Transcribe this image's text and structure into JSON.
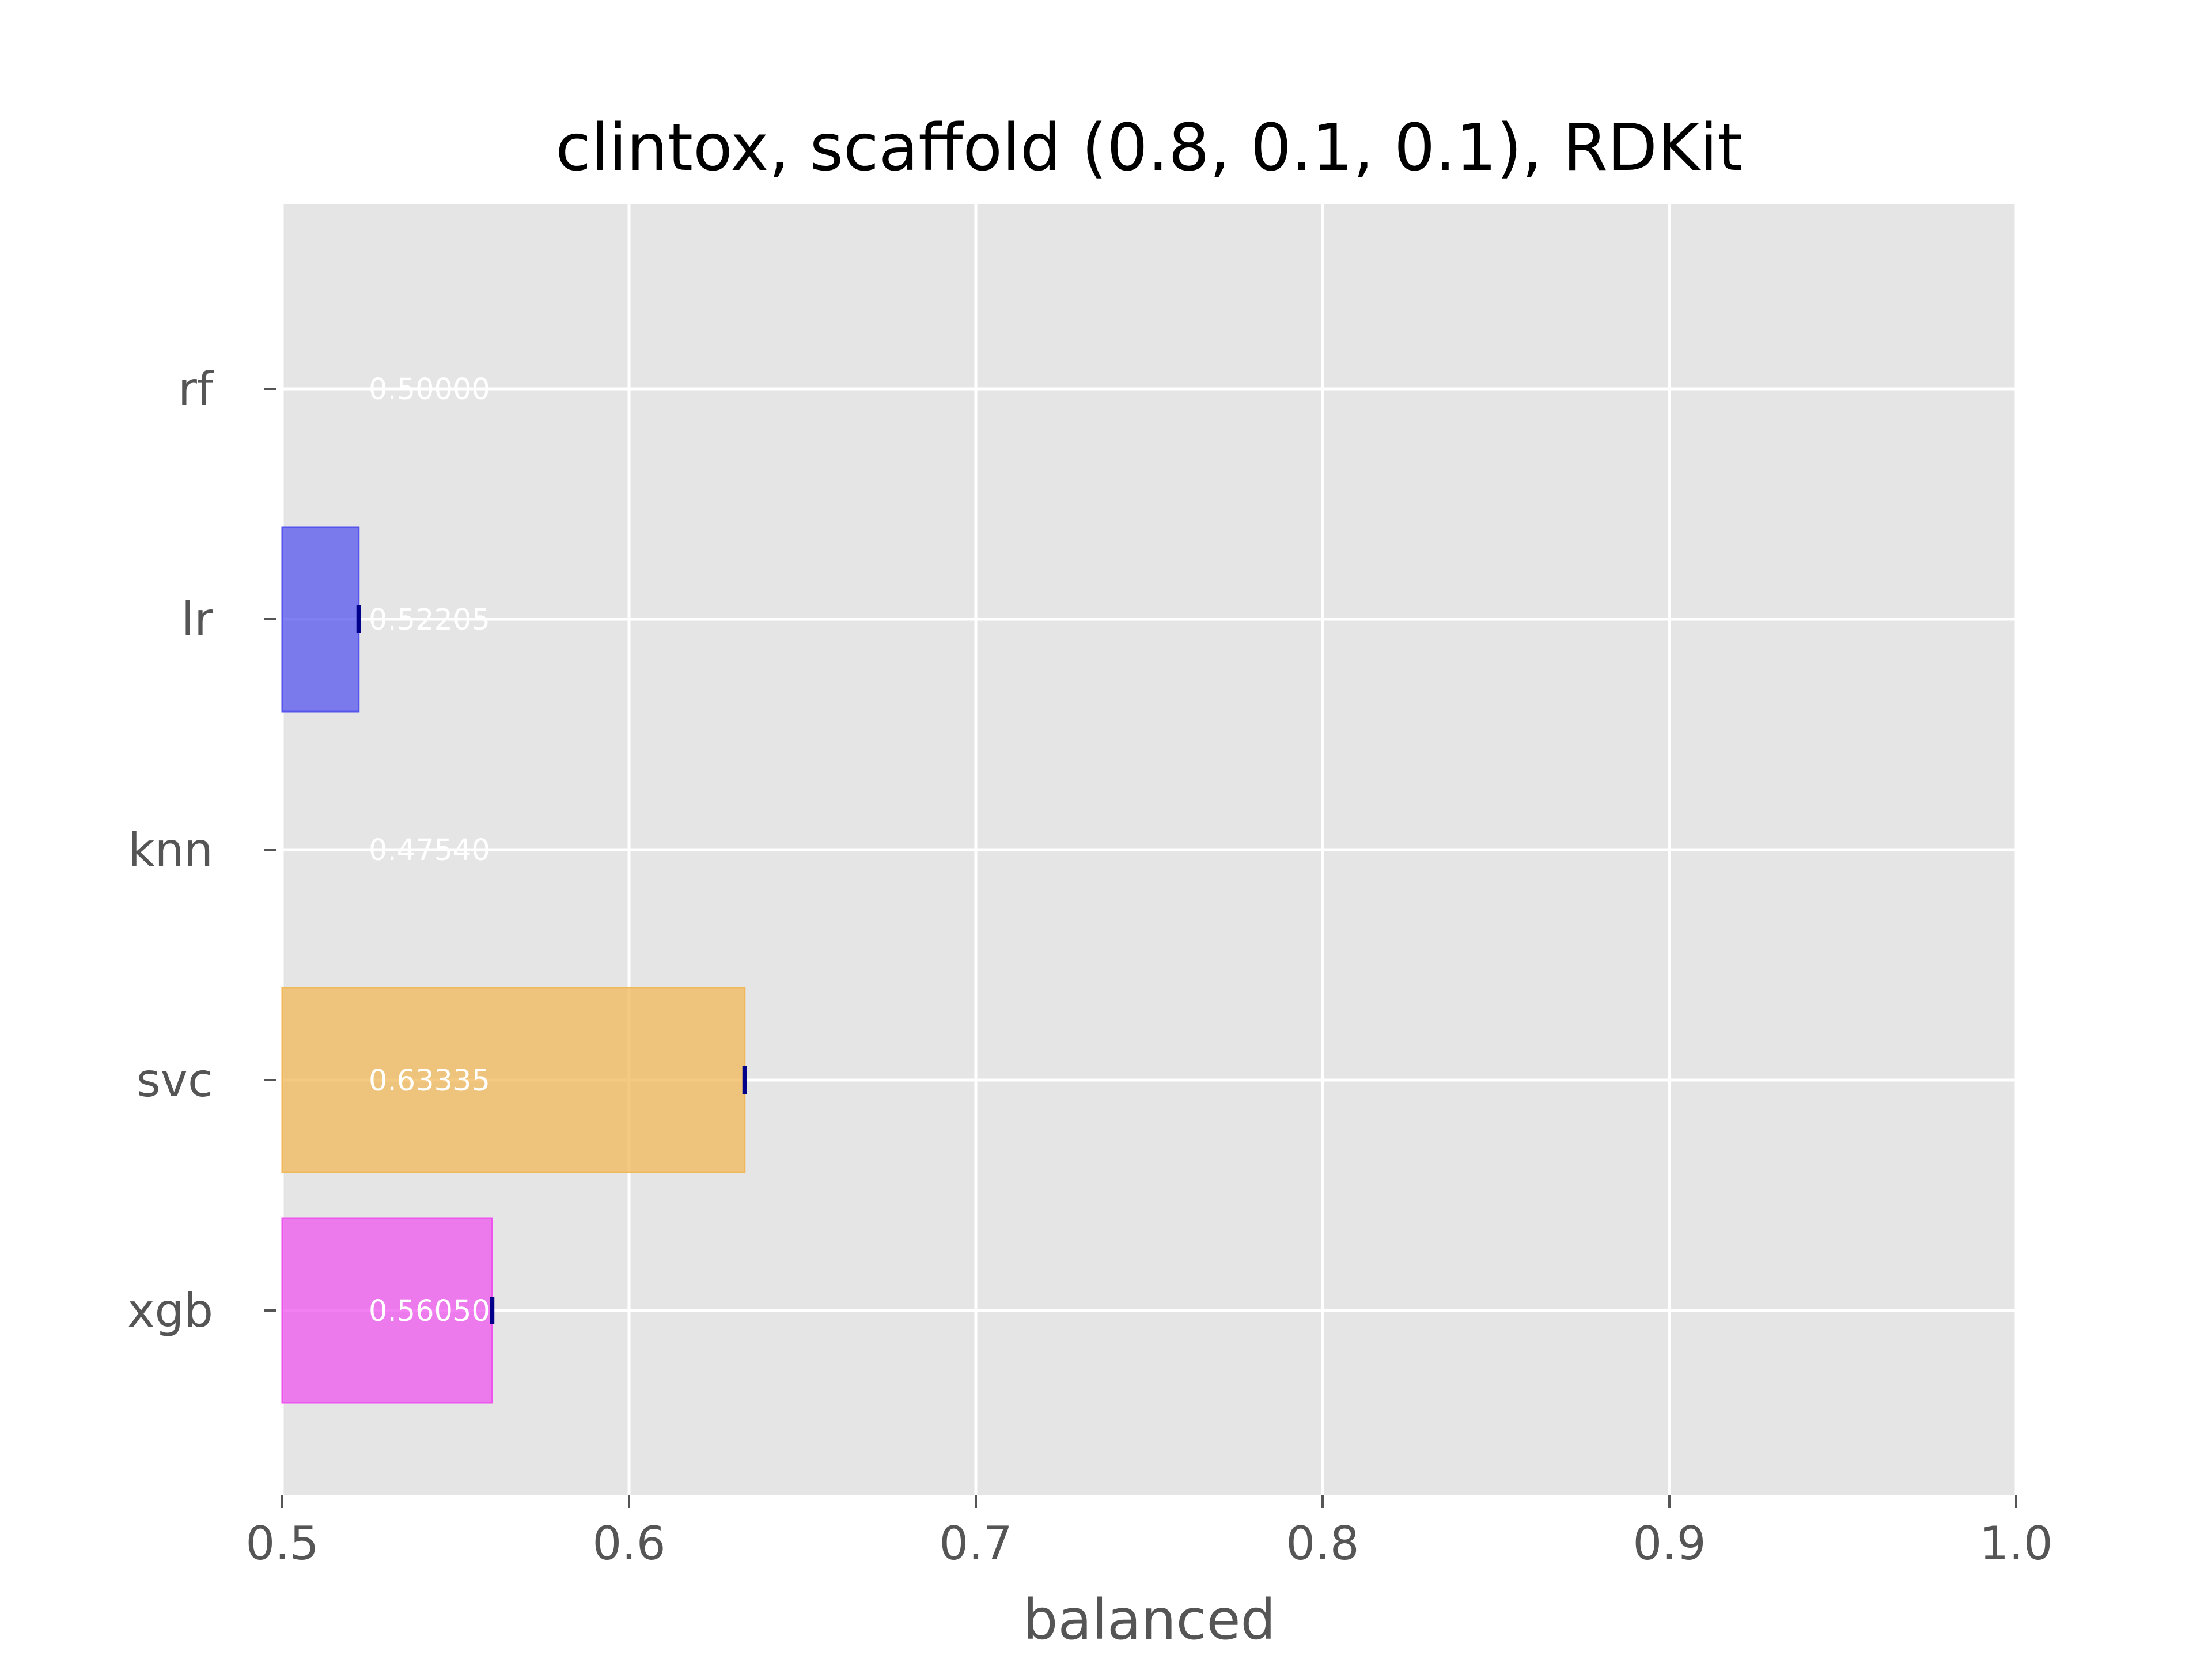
{
  "chart_data": {
    "type": "bar",
    "orientation": "horizontal",
    "title": "clintox, scaffold (0.8, 0.1, 0.1), RDKit",
    "xlabel": "balanced",
    "ylabel": "",
    "xlim": [
      0.5,
      1.0
    ],
    "xticks": [
      "0.5",
      "0.6",
      "0.7",
      "0.8",
      "0.9",
      "1.0"
    ],
    "grid": true,
    "legend": "none",
    "background_color": "#e5e5e5",
    "categories": [
      "rf",
      "lr",
      "knn",
      "svc",
      "xgb"
    ],
    "values": [
      0.5,
      0.52205,
      0.4754,
      0.63335,
      0.5605
    ],
    "value_labels": [
      "0.50000",
      "0.52205",
      "0.47540",
      "0.63335",
      "0.56050"
    ],
    "errors": [
      0.0,
      0.0,
      0.0,
      0.0,
      0.0
    ],
    "colors": [
      "#000000",
      "#5555ee",
      "#999999",
      "#f0b858",
      "#ee55ee"
    ],
    "error_color": "#00008b"
  }
}
